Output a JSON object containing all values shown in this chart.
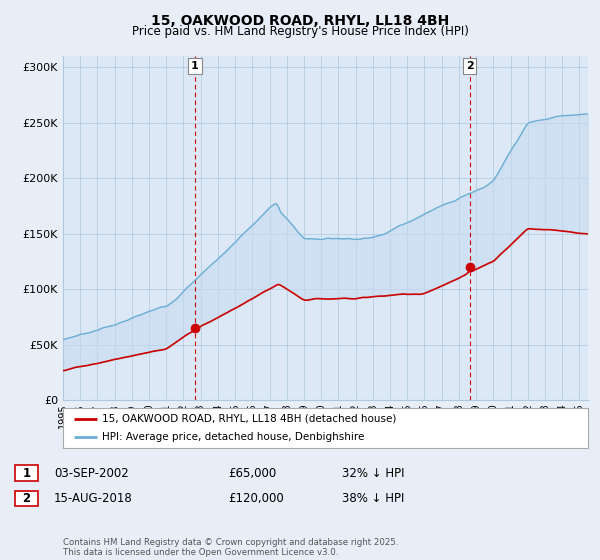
{
  "title": "15, OAKWOOD ROAD, RHYL, LL18 4BH",
  "subtitle": "Price paid vs. HM Land Registry's House Price Index (HPI)",
  "legend_property": "15, OAKWOOD ROAD, RHYL, LL18 4BH (detached house)",
  "legend_hpi": "HPI: Average price, detached house, Denbighshire",
  "transaction1_label": "1",
  "transaction1_date": "03-SEP-2002",
  "transaction1_price": "£65,000",
  "transaction1_hpi": "32% ↓ HPI",
  "transaction1_year": 2002.67,
  "transaction1_value": 65000,
  "transaction2_label": "2",
  "transaction2_date": "15-AUG-2018",
  "transaction2_price": "£120,000",
  "transaction2_hpi": "38% ↓ HPI",
  "transaction2_year": 2018.62,
  "transaction2_value": 120000,
  "ylim": [
    0,
    310000
  ],
  "xlim_start": 1995,
  "xlim_end": 2025.5,
  "hpi_color": "#6baed6",
  "property_color": "#cc0000",
  "fill_color": "#c6dbef",
  "vline_color": "#cc0000",
  "background_color": "#e8eef8",
  "plot_bg_color": "#dce8f5",
  "grid_color": "#adc8e0",
  "footnote": "Contains HM Land Registry data © Crown copyright and database right 2025.\nThis data is licensed under the Open Government Licence v3.0.",
  "yticks": [
    0,
    50000,
    100000,
    150000,
    200000,
    250000,
    300000
  ],
  "ytick_labels": [
    "£0",
    "£50K",
    "£100K",
    "£150K",
    "£200K",
    "£250K",
    "£300K"
  ],
  "xticks": [
    1995,
    1996,
    1997,
    1998,
    1999,
    2000,
    2001,
    2002,
    2003,
    2004,
    2005,
    2006,
    2007,
    2008,
    2009,
    2010,
    2011,
    2012,
    2013,
    2014,
    2015,
    2016,
    2017,
    2018,
    2019,
    2020,
    2021,
    2022,
    2023,
    2024,
    2025
  ]
}
